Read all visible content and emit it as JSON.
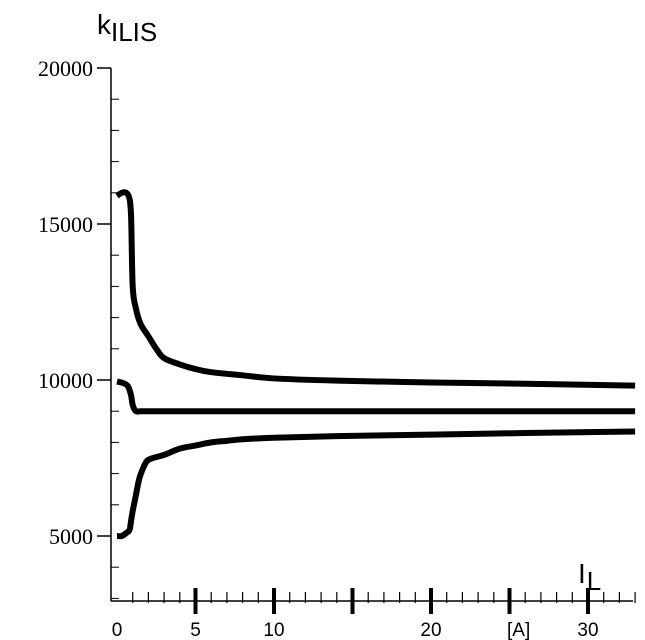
{
  "chart_data": {
    "type": "line",
    "title": "",
    "ylabel": {
      "main": "k",
      "sub": "ILIS"
    },
    "xlabel": {
      "main": "I",
      "sub": "L"
    },
    "x_unit": "[A]",
    "xlim": [
      0,
      33
    ],
    "ylim": [
      3000,
      20000
    ],
    "grid": false,
    "legend": "none",
    "y_ticks": [
      5000,
      10000,
      15000,
      20000
    ],
    "y_tick_labels": [
      "5000",
      "10000",
      "15000",
      "20000"
    ],
    "y_minor_step": 1000,
    "x_major_ticks": [
      5,
      10,
      15,
      20,
      25,
      30
    ],
    "x_tick_labels": [
      {
        "x": 0,
        "label": "0"
      },
      {
        "x": 5,
        "label": "5"
      },
      {
        "x": 10,
        "label": "10"
      },
      {
        "x": 20,
        "label": "20"
      },
      {
        "x": 30,
        "label": "30"
      }
    ],
    "x_minor_step": 1,
    "series": [
      {
        "x": [
          0,
          0.3,
          0.6,
          0.8,
          0.9,
          1.0,
          1.2,
          1.5,
          2.0,
          2.5,
          3.0,
          4.0,
          5.0,
          6.0,
          8.0,
          10.0,
          14.0,
          20.0,
          26.0,
          33.0
        ],
        "values": [
          15900,
          16000,
          16000,
          15800,
          15200,
          13000,
          12300,
          11800,
          11400,
          11000,
          10700,
          10500,
          10350,
          10250,
          10150,
          10050,
          9980,
          9920,
          9880,
          9820
        ]
      },
      {
        "x": [
          0,
          0.4,
          0.7,
          0.9,
          1.0,
          1.2,
          1.5,
          2.0,
          5.0,
          10.0,
          20.0,
          33.0
        ],
        "values": [
          9950,
          9900,
          9800,
          9500,
          9200,
          9000,
          9000,
          9000,
          9000,
          9000,
          9000,
          9000
        ]
      },
      {
        "x": [
          0,
          0.3,
          0.6,
          0.8,
          0.9,
          1.0,
          1.2,
          1.4,
          1.6,
          1.9,
          2.3,
          3.0,
          4.0,
          5.0,
          6.0,
          7.0,
          8.0,
          10.0,
          14.0,
          20.0,
          26.0,
          33.0
        ],
        "values": [
          5000,
          5000,
          5100,
          5200,
          5500,
          5800,
          6300,
          6800,
          7100,
          7400,
          7500,
          7600,
          7800,
          7900,
          8000,
          8050,
          8100,
          8150,
          8200,
          8250,
          8300,
          8350
        ]
      }
    ]
  }
}
